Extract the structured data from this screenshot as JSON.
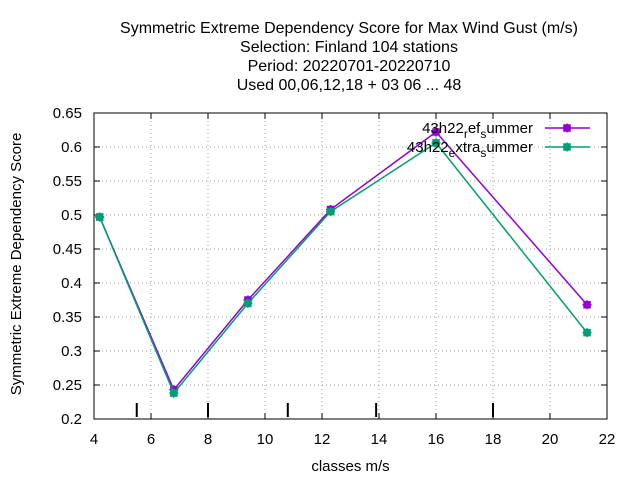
{
  "chart_data": {
    "type": "line",
    "title_lines": [
      "Symmetric Extreme Dependency Score  for Max Wind Gust (m/s)",
      "Selection: Finland    104 stations",
      "Period: 20220701-20220710",
      "Used  00,06,12,18  + 03 06 ... 48"
    ],
    "xlabel": "classes m/s",
    "ylabel": "Symmetric Extreme Dependency Score",
    "xlim": [
      4,
      22
    ],
    "ylim": [
      0.2,
      0.65
    ],
    "xticks": [
      4,
      6,
      8,
      10,
      12,
      14,
      16,
      18,
      20,
      22
    ],
    "yticks": [
      0.2,
      0.25,
      0.3,
      0.35,
      0.4,
      0.45,
      0.5,
      0.55,
      0.6,
      0.65
    ],
    "xtick_labels": [
      "4",
      "6",
      "8",
      "10",
      "12",
      "14",
      "16",
      "18",
      "20",
      "22"
    ],
    "ytick_labels": [
      "0.2",
      "0.25",
      "0.3",
      "0.35",
      "0.4",
      "0.45",
      "0.5",
      "0.55",
      "0.6",
      "0.65"
    ],
    "class_bounds": [
      5.5,
      8,
      10.8,
      13.9,
      18
    ],
    "grid": true,
    "legend_position": "top-right",
    "series": [
      {
        "name": "43h22_ref_summer",
        "legend_parts": [
          "43h22",
          "r",
          "ef",
          "s",
          "ummer"
        ],
        "color": "#9400d3",
        "x": [
          4.2,
          6.8,
          9.4,
          12.3,
          16.0,
          21.3
        ],
        "y": [
          0.497,
          0.243,
          0.375,
          0.508,
          0.622,
          0.368
        ]
      },
      {
        "name": "43h22_extra_summer",
        "legend_parts": [
          "43h22",
          "e",
          "xtra",
          "s",
          "ummer"
        ],
        "color": "#009e73",
        "x": [
          4.2,
          6.8,
          9.4,
          12.3,
          16.0,
          21.3
        ],
        "y": [
          0.497,
          0.238,
          0.37,
          0.505,
          0.606,
          0.327
        ]
      }
    ]
  }
}
